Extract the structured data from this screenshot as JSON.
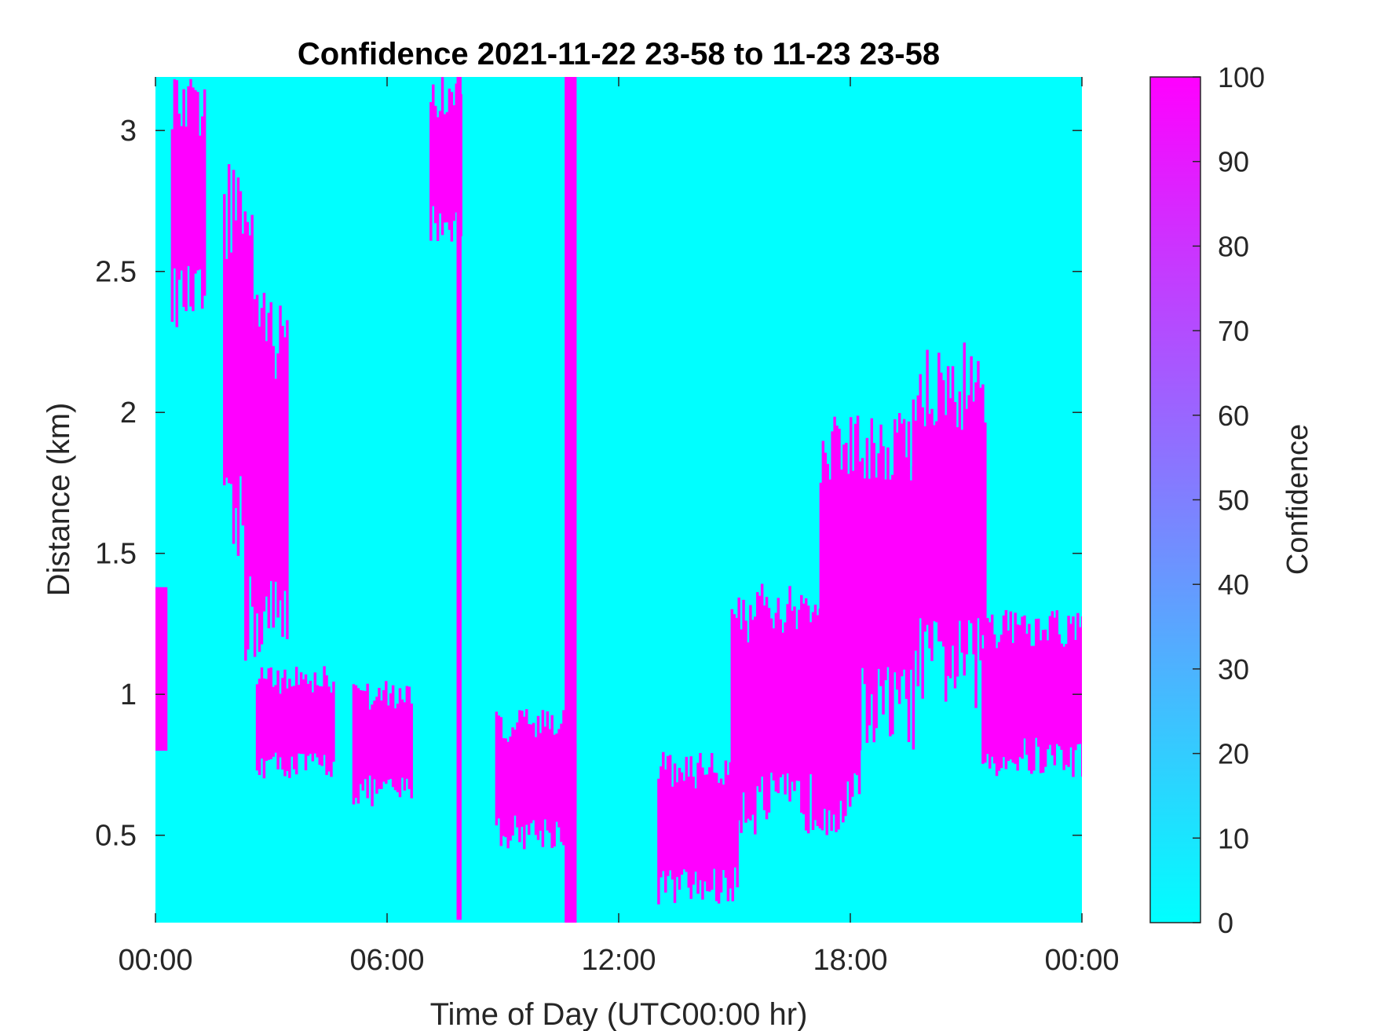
{
  "chart_data": {
    "type": "heatmap",
    "title": "Confidence 2021-11-22 23-58 to 11-23 23-58",
    "xlabel": "Time of Day (UTC00:00 hr)",
    "ylabel": "Distance (km)",
    "x_unit": "hours",
    "xlim": [
      0,
      24
    ],
    "ylim": [
      0.19,
      3.19
    ],
    "x_ticks": [
      {
        "value": 0,
        "label": "00:00"
      },
      {
        "value": 6,
        "label": "06:00"
      },
      {
        "value": 12,
        "label": "12:00"
      },
      {
        "value": 18,
        "label": "18:00"
      },
      {
        "value": 24,
        "label": "00:00"
      }
    ],
    "y_ticks": [
      {
        "value": 0.5,
        "label": "0.5"
      },
      {
        "value": 1,
        "label": "1"
      },
      {
        "value": 1.5,
        "label": "1.5"
      },
      {
        "value": 2,
        "label": "2"
      },
      {
        "value": 2.5,
        "label": "2.5"
      },
      {
        "value": 3,
        "label": "3"
      }
    ],
    "colorbar": {
      "label": "Confidence",
      "range": [
        0,
        100
      ],
      "ticks": [
        "0",
        "10",
        "20",
        "30",
        "40",
        "50",
        "60",
        "70",
        "80",
        "90",
        "100"
      ],
      "low_color": "#00FFFF",
      "high_color": "#FF00FF"
    },
    "background_value": 0,
    "high_confidence_regions": [
      {
        "x_start": 0.0,
        "x_end": 0.25,
        "y_low": 0.8,
        "y_high": 1.38,
        "value": 100
      },
      {
        "x_start": 0.4,
        "x_end": 1.3,
        "y_low": 2.3,
        "y_high": 3.19,
        "value": 100
      },
      {
        "x_start": 1.75,
        "x_end": 2.5,
        "y_low": 1.4,
        "y_high": 2.9,
        "value": 100
      },
      {
        "x_start": 2.3,
        "x_end": 3.4,
        "y_low": 1.1,
        "y_high": 2.45,
        "value": 100
      },
      {
        "x_start": 2.6,
        "x_end": 4.6,
        "y_low": 0.7,
        "y_high": 1.1,
        "value": 100
      },
      {
        "x_start": 5.1,
        "x_end": 6.6,
        "y_low": 0.6,
        "y_high": 1.05,
        "value": 100
      },
      {
        "x_start": 7.1,
        "x_end": 7.9,
        "y_low": 2.6,
        "y_high": 3.19,
        "value": 100
      },
      {
        "x_start": 7.8,
        "x_end": 7.9,
        "y_low": 0.2,
        "y_high": 3.19,
        "value": 100
      },
      {
        "x_start": 8.8,
        "x_end": 10.9,
        "y_low": 0.45,
        "y_high": 0.95,
        "value": 100
      },
      {
        "x_start": 10.6,
        "x_end": 10.85,
        "y_low": 0.19,
        "y_high": 3.19,
        "value": 100
      },
      {
        "x_start": 13.0,
        "x_end": 15.1,
        "y_low": 0.25,
        "y_high": 0.8,
        "value": 100
      },
      {
        "x_start": 14.9,
        "x_end": 18.2,
        "y_low": 0.5,
        "y_high": 1.4,
        "value": 100
      },
      {
        "x_start": 17.2,
        "x_end": 19.6,
        "y_low": 0.8,
        "y_high": 2.05,
        "value": 100
      },
      {
        "x_start": 19.6,
        "x_end": 21.5,
        "y_low": 0.95,
        "y_high": 2.25,
        "value": 100
      },
      {
        "x_start": 21.4,
        "x_end": 24.0,
        "y_low": 0.7,
        "y_high": 1.3,
        "value": 100
      }
    ]
  }
}
